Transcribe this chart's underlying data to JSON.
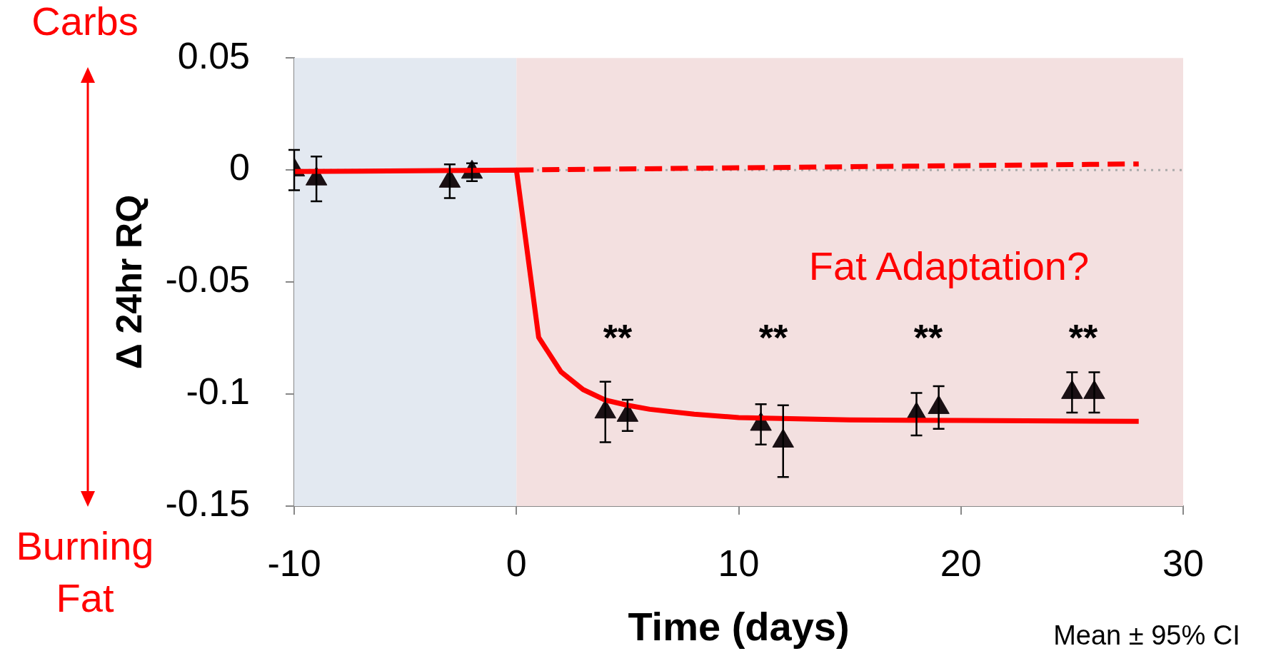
{
  "chart_data": {
    "type": "scatter",
    "xlabel": "Time (days)",
    "ylabel": "Δ 24hr RQ",
    "xlim": [
      -10,
      30
    ],
    "xticks": [
      -10,
      0,
      10,
      20,
      30
    ],
    "ylim": [
      -0.15,
      0.05
    ],
    "yticks": [
      -0.15,
      -0.1,
      -0.05,
      0,
      0.05
    ],
    "grid": false,
    "legend": false,
    "series": [
      {
        "color": "#1a1014",
        "marker": "triangle",
        "x": [
          -10,
          -9,
          -3,
          -2,
          4,
          5,
          11,
          12,
          18,
          19,
          25,
          26
        ],
        "values": [
          0.0,
          -0.004,
          -0.005,
          -0.001,
          -0.108,
          -0.1095,
          -0.1135,
          -0.121,
          -0.109,
          -0.106,
          -0.0993,
          -0.0993
        ],
        "errors": [
          0.009,
          0.01,
          0.0075,
          0.004,
          0.0135,
          0.007,
          0.009,
          0.016,
          0.0095,
          0.0095,
          0.009,
          0.009
        ]
      },
      {
        "type": "line",
        "color": "#ff0000",
        "marker": "none",
        "line_style": "solid",
        "x": [
          -10,
          0,
          1,
          2,
          3,
          4,
          5,
          6,
          8,
          10,
          15,
          20,
          28
        ],
        "values": [
          -0.0007,
          0,
          -0.0747,
          -0.09,
          -0.098,
          -0.1027,
          -0.105,
          -0.1068,
          -0.109,
          -0.1105,
          -0.1115,
          -0.1118,
          -0.1122
        ]
      },
      {
        "type": "line",
        "color": "#ff0000",
        "marker": "none",
        "line_style": "dashed",
        "x": [
          0,
          28
        ],
        "values": [
          0,
          0.0027
        ]
      }
    ],
    "bands": [
      {
        "axis": "x",
        "from": -10,
        "to": 0,
        "color": "#e3e9f1"
      },
      {
        "axis": "x",
        "from": 0,
        "to": 30,
        "color": "#f3e0e0"
      }
    ],
    "ref_lines": [
      {
        "axis": "y",
        "value": 0,
        "color": "#aaaaaa",
        "line_style": "dotted"
      }
    ],
    "annotations": [
      "Carbs",
      "Burning Fat",
      "Fat Adaptation?",
      "Mean ± 95% CI",
      "**",
      "**",
      "**",
      "**"
    ]
  }
}
